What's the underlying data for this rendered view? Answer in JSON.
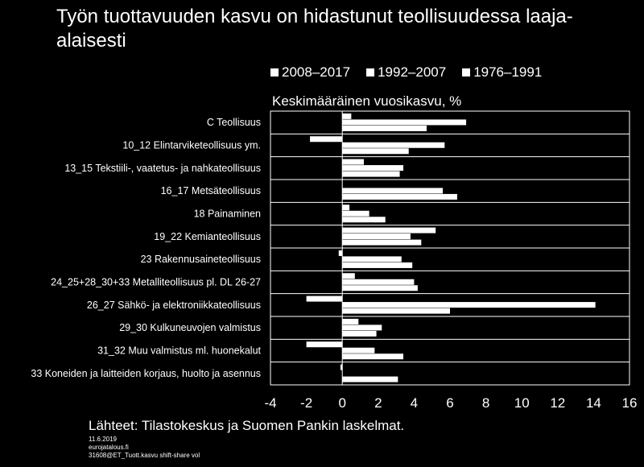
{
  "title": "Työn tuottavuuden kasvu on hidastunut teollisuudessa laaja-alaisesti",
  "subtitle": "Keskimääräinen vuosikasvu, %",
  "legend": [
    "2008–2017",
    "1992–2007",
    "1976–1991"
  ],
  "source": "Lähteet: Tilastokeskus ja Suomen Pankin laskelmat.",
  "footer": [
    "11.6.2019",
    "eurojatalous.fi",
    "31608@ET_Tuott.kasvu shift-share  vol"
  ],
  "chart_data": {
    "type": "bar",
    "orientation": "horizontal",
    "categories": [
      "C Teollisuus",
      "10_12 Elintarviketeollisuus ym.",
      "13_15 Tekstiili-, vaatetus- ja nahkateollisuus",
      "16_17 Metsäteollisuus",
      "18 Painaminen",
      "19_22 Kemianteollisuus",
      "23 Rakennusaineteollisuus",
      "24_25+28_30+33 Metalliteollisuus pl. DL 26-27",
      "26_27 Sähkö- ja elektroniikkateollisuus",
      "29_30 Kulkuneuvojen valmistus",
      "31_32 Muu valmistus ml. huonekalut",
      "33 Koneiden ja laitteiden korjaus, huolto ja asennus"
    ],
    "series": [
      {
        "name": "2008–2017",
        "values": [
          0.5,
          -1.8,
          1.2,
          0.0,
          0.4,
          5.2,
          -0.2,
          0.7,
          -2.0,
          0.9,
          -2.0,
          -0.1
        ]
      },
      {
        "name": "1992–2007",
        "values": [
          6.9,
          5.7,
          3.4,
          5.6,
          1.5,
          3.8,
          3.3,
          4.0,
          14.1,
          2.2,
          1.8,
          0.0
        ]
      },
      {
        "name": "1976–1991",
        "values": [
          4.7,
          3.7,
          3.2,
          6.4,
          2.4,
          4.4,
          3.9,
          4.2,
          6.0,
          1.9,
          3.4,
          3.1
        ]
      }
    ],
    "xlim": [
      -4,
      16
    ],
    "xticks": [
      "-4",
      "-2",
      "0",
      "2",
      "4",
      "6",
      "8",
      "10",
      "12",
      "14",
      "16"
    ],
    "grid": false,
    "legend_position": "top"
  }
}
